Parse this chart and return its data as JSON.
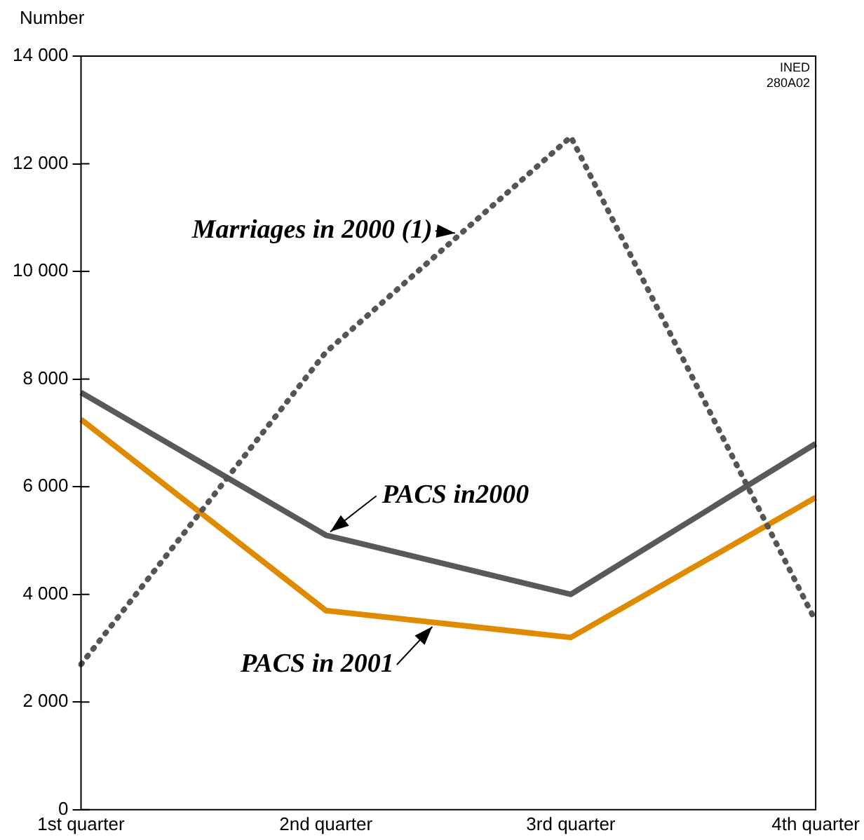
{
  "chart_data": {
    "type": "line",
    "ylabel": "Number",
    "categories": [
      "1st quarter",
      "2nd quarter",
      "3rd quarter",
      "4th quarter"
    ],
    "ylim": [
      0,
      14000
    ],
    "yticks": [
      {
        "value": 0,
        "label": "0"
      },
      {
        "value": 2000,
        "label": "2 000"
      },
      {
        "value": 4000,
        "label": "4 000"
      },
      {
        "value": 6000,
        "label": "6 000"
      },
      {
        "value": 8000,
        "label": "8 000"
      },
      {
        "value": 10000,
        "label": "10 000"
      },
      {
        "value": 12000,
        "label": "12 000"
      },
      {
        "value": 14000,
        "label": "14 000"
      }
    ],
    "grid": false,
    "legend": false,
    "marker": "none",
    "annotations": [
      "INED\n280A02"
    ],
    "series": [
      {
        "name": "Marriages in 2000 (1)",
        "color": "#555555",
        "line_style": "dotted",
        "values": [
          2700,
          8500,
          12500,
          3500
        ]
      },
      {
        "name": "PACS in2000",
        "color": "#595959",
        "line_style": "solid",
        "values": [
          7750,
          5100,
          4000,
          6800
        ]
      },
      {
        "name": "PACS in 2001",
        "color": "#e08a00",
        "line_style": "solid",
        "values": [
          7250,
          3700,
          3200,
          5800
        ]
      }
    ]
  }
}
